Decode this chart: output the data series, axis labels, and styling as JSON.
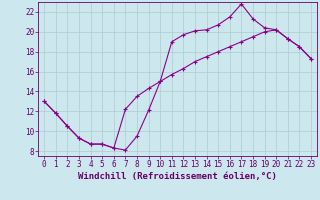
{
  "xlabel": "Windchill (Refroidissement éolien,°C)",
  "background_color": "#cce8ee",
  "line_color": "#8b008b",
  "grid_color": "#aacccc",
  "xlim": [
    -0.5,
    23.5
  ],
  "ylim": [
    7.5,
    23.0
  ],
  "xticks": [
    0,
    1,
    2,
    3,
    4,
    5,
    6,
    7,
    8,
    9,
    10,
    11,
    12,
    13,
    14,
    15,
    16,
    17,
    18,
    19,
    20,
    21,
    22,
    23
  ],
  "yticks": [
    8,
    10,
    12,
    14,
    16,
    18,
    20,
    22
  ],
  "line1_x": [
    0,
    1,
    2,
    3,
    4,
    5,
    6,
    7,
    8,
    9,
    10,
    11,
    12,
    13,
    14,
    15,
    16,
    17,
    18,
    19,
    20,
    21,
    22,
    23
  ],
  "line1_y": [
    13.0,
    11.8,
    10.5,
    9.3,
    8.7,
    8.7,
    8.3,
    8.1,
    9.5,
    12.1,
    15.0,
    19.0,
    19.7,
    20.1,
    20.2,
    20.7,
    21.5,
    22.8,
    21.3,
    20.4,
    20.2,
    19.3,
    18.5,
    17.3
  ],
  "line2_x": [
    0,
    1,
    2,
    3,
    4,
    5,
    6,
    7,
    8,
    9,
    10,
    11,
    12,
    13,
    14,
    15,
    16,
    17,
    18,
    19,
    20,
    21,
    22,
    23
  ],
  "line2_y": [
    13.0,
    11.8,
    10.5,
    9.3,
    8.7,
    8.7,
    8.3,
    12.2,
    13.5,
    14.3,
    15.0,
    15.7,
    16.3,
    17.0,
    17.5,
    18.0,
    18.5,
    19.0,
    19.5,
    20.0,
    20.2,
    19.3,
    18.5,
    17.3
  ],
  "font_color": "#660066",
  "tick_fontsize": 5.5,
  "label_fontsize": 6.5
}
